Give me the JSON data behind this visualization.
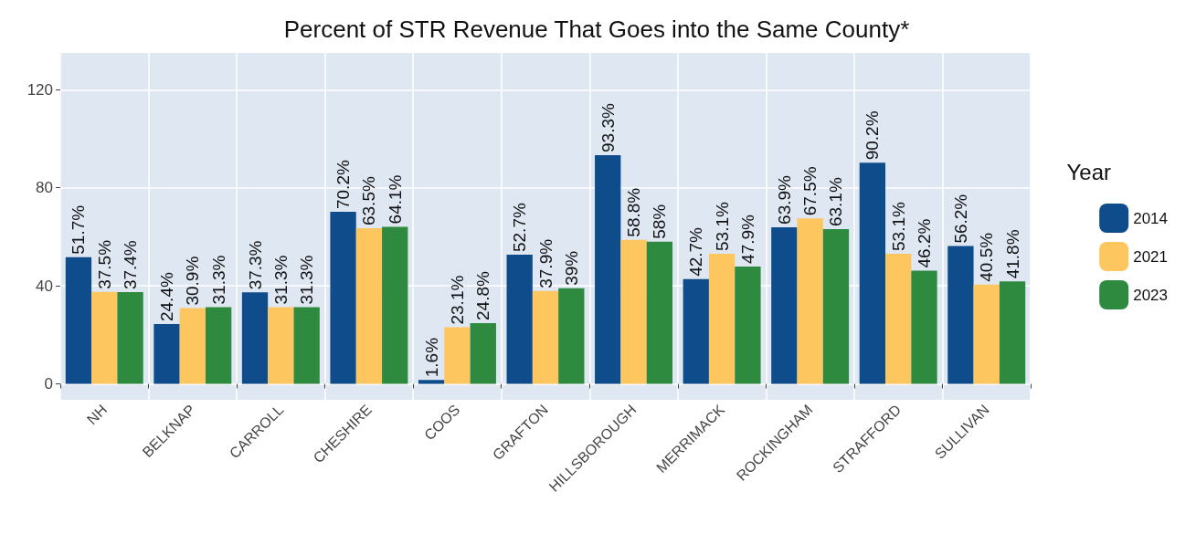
{
  "chart_data": {
    "type": "bar",
    "title": "Percent of STR Revenue That Goes into the Same County*",
    "legend_title": "Year",
    "legend": "right",
    "grid": true,
    "categories": [
      "NH",
      "BELKNAP",
      "CARROLL",
      "CHESHIRE",
      "COOS",
      "GRAFTON",
      "HILLSBOROUGH",
      "MERRIMACK",
      "ROCKINGHAM",
      "STRAFFORD",
      "SULLIVAN"
    ],
    "ylim": [
      -6.5,
      135
    ],
    "yticks": [
      0,
      40,
      80,
      120
    ],
    "series": [
      {
        "name": "2014",
        "color": "#0f4c8c",
        "values": [
          51.7,
          24.4,
          37.3,
          70.2,
          1.6,
          52.7,
          93.3,
          42.7,
          63.9,
          90.2,
          56.2
        ],
        "value_labels": [
          "51.7%",
          "24.4%",
          "37.3%",
          "70.2%",
          "1.6%",
          "52.7%",
          "93.3%",
          "42.7%",
          "63.9%",
          "90.2%",
          "56.2%"
        ]
      },
      {
        "name": "2021",
        "color": "#fdc65f",
        "values": [
          37.5,
          30.9,
          31.3,
          63.5,
          23.1,
          37.9,
          58.8,
          53.1,
          67.5,
          53.1,
          40.5
        ],
        "value_labels": [
          "37.5%",
          "30.9%",
          "31.3%",
          "63.5%",
          "23.1%",
          "37.9%",
          "58.8%",
          "53.1%",
          "67.5%",
          "53.1%",
          "40.5%"
        ]
      },
      {
        "name": "2023",
        "color": "#2e8a3f",
        "values": [
          37.4,
          31.3,
          31.3,
          64.1,
          24.8,
          39,
          58,
          47.9,
          63.1,
          46.2,
          41.8
        ],
        "value_labels": [
          "37.4%",
          "31.3%",
          "31.3%",
          "64.1%",
          "24.8%",
          "39%",
          "58%",
          "47.9%",
          "63.1%",
          "46.2%",
          "41.8%"
        ]
      }
    ]
  }
}
